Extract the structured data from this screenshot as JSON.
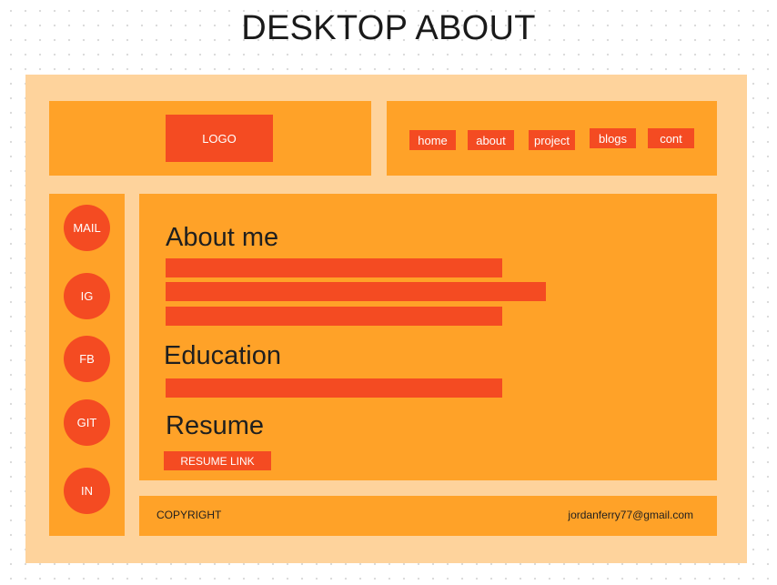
{
  "page": {
    "title": "DESKTOP ABOUT"
  },
  "colors": {
    "frame_background": "#fed39c",
    "panel": "#ffa228",
    "accent": "#f44b22",
    "text_dark": "#1f1f1f"
  },
  "header": {
    "logo_label": "LOGO",
    "nav": [
      {
        "label": "home"
      },
      {
        "label": "about"
      },
      {
        "label": "project"
      },
      {
        "label": "blogs"
      },
      {
        "label": "cont"
      }
    ]
  },
  "sidebar": {
    "links": [
      {
        "label": "MAIL"
      },
      {
        "label": "IG"
      },
      {
        "label": "FB"
      },
      {
        "label": "GIT"
      },
      {
        "label": "IN"
      }
    ]
  },
  "main": {
    "about_heading": "About me",
    "education_heading": "Education",
    "resume_heading": "Resume",
    "resume_link_label": "RESUME LINK"
  },
  "footer": {
    "copyright": "COPYRIGHT",
    "email": "jordanferry77@gmail.com"
  }
}
